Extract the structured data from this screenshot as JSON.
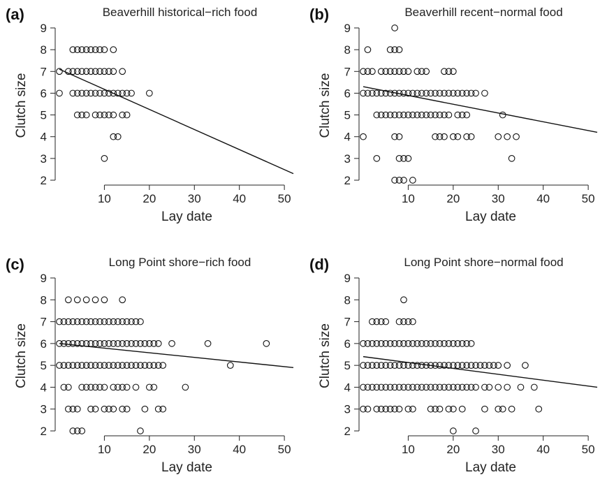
{
  "chart_data": [
    {
      "type": "scatter",
      "panel_label": "(a)",
      "title": "Beaverhill historical−rich food",
      "xlabel": "Lay date",
      "ylabel": "Clutch size",
      "xlim": [
        0,
        52
      ],
      "ylim": [
        2,
        9
      ],
      "xticks": [
        10,
        20,
        30,
        40,
        50
      ],
      "yticks": [
        2,
        3,
        4,
        5,
        6,
        7,
        8,
        9
      ],
      "regression_line": [
        [
          0,
          7.1
        ],
        [
          52,
          2.3
        ]
      ],
      "points": [
        [
          0,
          7
        ],
        [
          0,
          6
        ],
        [
          2,
          7
        ],
        [
          3,
          8
        ],
        [
          3,
          7
        ],
        [
          3,
          6
        ],
        [
          4,
          8
        ],
        [
          4,
          7
        ],
        [
          4,
          6
        ],
        [
          4,
          5
        ],
        [
          5,
          8
        ],
        [
          5,
          7
        ],
        [
          5,
          6
        ],
        [
          5,
          5
        ],
        [
          6,
          8
        ],
        [
          6,
          7
        ],
        [
          6,
          6
        ],
        [
          6,
          5
        ],
        [
          7,
          8
        ],
        [
          7,
          7
        ],
        [
          7,
          6
        ],
        [
          8,
          8
        ],
        [
          8,
          7
        ],
        [
          8,
          6
        ],
        [
          8,
          5
        ],
        [
          9,
          8
        ],
        [
          9,
          7
        ],
        [
          9,
          6
        ],
        [
          9,
          5
        ],
        [
          10,
          8
        ],
        [
          10,
          7
        ],
        [
          10,
          6
        ],
        [
          10,
          5
        ],
        [
          10,
          3
        ],
        [
          11,
          7
        ],
        [
          11,
          6
        ],
        [
          11,
          5
        ],
        [
          12,
          8
        ],
        [
          12,
          7
        ],
        [
          12,
          6
        ],
        [
          12,
          5
        ],
        [
          12,
          4
        ],
        [
          13,
          6
        ],
        [
          13,
          4
        ],
        [
          14,
          7
        ],
        [
          14,
          6
        ],
        [
          14,
          5
        ],
        [
          15,
          6
        ],
        [
          15,
          5
        ],
        [
          16,
          6
        ],
        [
          20,
          6
        ]
      ]
    },
    {
      "type": "scatter",
      "panel_label": "(b)",
      "title": "Beaverhill recent−normal food",
      "xlabel": "Lay date",
      "ylabel": "Clutch size",
      "xlim": [
        0,
        52
      ],
      "ylim": [
        2,
        9
      ],
      "xticks": [
        10,
        20,
        30,
        40,
        50
      ],
      "yticks": [
        2,
        3,
        4,
        5,
        6,
        7,
        8,
        9
      ],
      "regression_line": [
        [
          0,
          6.3
        ],
        [
          52,
          4.2
        ]
      ],
      "points": [
        [
          0,
          7
        ],
        [
          0,
          6
        ],
        [
          0,
          4
        ],
        [
          1,
          8
        ],
        [
          1,
          7
        ],
        [
          1,
          6
        ],
        [
          2,
          7
        ],
        [
          2,
          6
        ],
        [
          3,
          6
        ],
        [
          3,
          5
        ],
        [
          3,
          3
        ],
        [
          4,
          7
        ],
        [
          4,
          6
        ],
        [
          4,
          5
        ],
        [
          5,
          7
        ],
        [
          5,
          6
        ],
        [
          5,
          5
        ],
        [
          6,
          8
        ],
        [
          6,
          7
        ],
        [
          6,
          6
        ],
        [
          6,
          5
        ],
        [
          7,
          9
        ],
        [
          7,
          8
        ],
        [
          7,
          7
        ],
        [
          7,
          6
        ],
        [
          7,
          5
        ],
        [
          7,
          4
        ],
        [
          7,
          2
        ],
        [
          8,
          8
        ],
        [
          8,
          7
        ],
        [
          8,
          6
        ],
        [
          8,
          5
        ],
        [
          8,
          4
        ],
        [
          8,
          3
        ],
        [
          8,
          2
        ],
        [
          9,
          7
        ],
        [
          9,
          6
        ],
        [
          9,
          5
        ],
        [
          9,
          3
        ],
        [
          9,
          2
        ],
        [
          10,
          7
        ],
        [
          10,
          6
        ],
        [
          10,
          5
        ],
        [
          10,
          3
        ],
        [
          11,
          6
        ],
        [
          11,
          5
        ],
        [
          11,
          2
        ],
        [
          12,
          7
        ],
        [
          12,
          6
        ],
        [
          12,
          5
        ],
        [
          13,
          7
        ],
        [
          13,
          6
        ],
        [
          13,
          5
        ],
        [
          14,
          7
        ],
        [
          14,
          6
        ],
        [
          14,
          5
        ],
        [
          15,
          6
        ],
        [
          15,
          5
        ],
        [
          16,
          6
        ],
        [
          16,
          5
        ],
        [
          16,
          4
        ],
        [
          17,
          6
        ],
        [
          17,
          5
        ],
        [
          17,
          4
        ],
        [
          18,
          7
        ],
        [
          18,
          6
        ],
        [
          18,
          5
        ],
        [
          18,
          4
        ],
        [
          19,
          7
        ],
        [
          19,
          6
        ],
        [
          19,
          5
        ],
        [
          20,
          7
        ],
        [
          20,
          6
        ],
        [
          20,
          4
        ],
        [
          21,
          6
        ],
        [
          21,
          5
        ],
        [
          21,
          4
        ],
        [
          22,
          6
        ],
        [
          22,
          5
        ],
        [
          23,
          6
        ],
        [
          23,
          5
        ],
        [
          23,
          4
        ],
        [
          24,
          6
        ],
        [
          24,
          4
        ],
        [
          25,
          6
        ],
        [
          27,
          6
        ],
        [
          30,
          4
        ],
        [
          31,
          5
        ],
        [
          32,
          4
        ],
        [
          33,
          3
        ],
        [
          34,
          4
        ]
      ]
    },
    {
      "type": "scatter",
      "panel_label": "(c)",
      "title": "Long Point shore−rich food",
      "xlabel": "Lay date",
      "ylabel": "Clutch size",
      "xlim": [
        0,
        52
      ],
      "ylim": [
        2,
        9
      ],
      "xticks": [
        10,
        20,
        30,
        40,
        50
      ],
      "yticks": [
        2,
        3,
        4,
        5,
        6,
        7,
        8,
        9
      ],
      "regression_line": [
        [
          0,
          6.0
        ],
        [
          52,
          4.9
        ]
      ],
      "points": [
        [
          0,
          7
        ],
        [
          0,
          6
        ],
        [
          0,
          5
        ],
        [
          1,
          7
        ],
        [
          1,
          6
        ],
        [
          1,
          5
        ],
        [
          1,
          4
        ],
        [
          2,
          8
        ],
        [
          2,
          7
        ],
        [
          2,
          6
        ],
        [
          2,
          5
        ],
        [
          2,
          4
        ],
        [
          2,
          3
        ],
        [
          3,
          7
        ],
        [
          3,
          6
        ],
        [
          3,
          5
        ],
        [
          3,
          3
        ],
        [
          3,
          2
        ],
        [
          4,
          8
        ],
        [
          4,
          7
        ],
        [
          4,
          6
        ],
        [
          4,
          5
        ],
        [
          4,
          3
        ],
        [
          4,
          2
        ],
        [
          5,
          7
        ],
        [
          5,
          6
        ],
        [
          5,
          5
        ],
        [
          5,
          4
        ],
        [
          5,
          2
        ],
        [
          6,
          8
        ],
        [
          6,
          7
        ],
        [
          6,
          6
        ],
        [
          6,
          5
        ],
        [
          6,
          4
        ],
        [
          7,
          7
        ],
        [
          7,
          6
        ],
        [
          7,
          5
        ],
        [
          7,
          4
        ],
        [
          7,
          3
        ],
        [
          8,
          8
        ],
        [
          8,
          7
        ],
        [
          8,
          6
        ],
        [
          8,
          5
        ],
        [
          8,
          4
        ],
        [
          8,
          3
        ],
        [
          9,
          7
        ],
        [
          9,
          6
        ],
        [
          9,
          5
        ],
        [
          9,
          4
        ],
        [
          10,
          8
        ],
        [
          10,
          7
        ],
        [
          10,
          6
        ],
        [
          10,
          5
        ],
        [
          10,
          4
        ],
        [
          10,
          3
        ],
        [
          11,
          7
        ],
        [
          11,
          6
        ],
        [
          11,
          5
        ],
        [
          11,
          3
        ],
        [
          12,
          7
        ],
        [
          12,
          6
        ],
        [
          12,
          5
        ],
        [
          12,
          4
        ],
        [
          12,
          3
        ],
        [
          13,
          7
        ],
        [
          13,
          6
        ],
        [
          13,
          5
        ],
        [
          13,
          4
        ],
        [
          14,
          8
        ],
        [
          14,
          7
        ],
        [
          14,
          6
        ],
        [
          14,
          5
        ],
        [
          14,
          4
        ],
        [
          14,
          3
        ],
        [
          15,
          7
        ],
        [
          15,
          6
        ],
        [
          15,
          5
        ],
        [
          15,
          4
        ],
        [
          15,
          3
        ],
        [
          16,
          7
        ],
        [
          16,
          6
        ],
        [
          16,
          5
        ],
        [
          17,
          7
        ],
        [
          17,
          6
        ],
        [
          17,
          5
        ],
        [
          17,
          4
        ],
        [
          18,
          7
        ],
        [
          18,
          6
        ],
        [
          18,
          5
        ],
        [
          18,
          2
        ],
        [
          19,
          6
        ],
        [
          19,
          5
        ],
        [
          19,
          3
        ],
        [
          20,
          6
        ],
        [
          20,
          5
        ],
        [
          20,
          4
        ],
        [
          21,
          6
        ],
        [
          21,
          5
        ],
        [
          21,
          4
        ],
        [
          22,
          6
        ],
        [
          22,
          5
        ],
        [
          22,
          3
        ],
        [
          23,
          5
        ],
        [
          23,
          3
        ],
        [
          25,
          6
        ],
        [
          28,
          4
        ],
        [
          33,
          6
        ],
        [
          38,
          5
        ],
        [
          46,
          6
        ]
      ]
    },
    {
      "type": "scatter",
      "panel_label": "(d)",
      "title": "Long Point shore−normal food",
      "xlabel": "Lay date",
      "ylabel": "Clutch size",
      "xlim": [
        0,
        52
      ],
      "ylim": [
        2,
        9
      ],
      "xticks": [
        10,
        20,
        30,
        40,
        50
      ],
      "yticks": [
        2,
        3,
        4,
        5,
        6,
        7,
        8,
        9
      ],
      "regression_line": [
        [
          0,
          5.4
        ],
        [
          52,
          4.0
        ]
      ],
      "points": [
        [
          0,
          6
        ],
        [
          0,
          5
        ],
        [
          0,
          4
        ],
        [
          0,
          3
        ],
        [
          1,
          6
        ],
        [
          1,
          5
        ],
        [
          1,
          4
        ],
        [
          1,
          3
        ],
        [
          2,
          7
        ],
        [
          2,
          6
        ],
        [
          2,
          5
        ],
        [
          2,
          4
        ],
        [
          3,
          7
        ],
        [
          3,
          6
        ],
        [
          3,
          5
        ],
        [
          3,
          4
        ],
        [
          3,
          3
        ],
        [
          4,
          7
        ],
        [
          4,
          6
        ],
        [
          4,
          5
        ],
        [
          4,
          4
        ],
        [
          4,
          3
        ],
        [
          5,
          7
        ],
        [
          5,
          6
        ],
        [
          5,
          5
        ],
        [
          5,
          4
        ],
        [
          5,
          3
        ],
        [
          6,
          6
        ],
        [
          6,
          5
        ],
        [
          6,
          4
        ],
        [
          6,
          3
        ],
        [
          7,
          6
        ],
        [
          7,
          5
        ],
        [
          7,
          4
        ],
        [
          7,
          3
        ],
        [
          8,
          7
        ],
        [
          8,
          6
        ],
        [
          8,
          5
        ],
        [
          8,
          4
        ],
        [
          8,
          3
        ],
        [
          9,
          8
        ],
        [
          9,
          7
        ],
        [
          9,
          6
        ],
        [
          9,
          5
        ],
        [
          9,
          4
        ],
        [
          10,
          7
        ],
        [
          10,
          6
        ],
        [
          10,
          5
        ],
        [
          10,
          4
        ],
        [
          10,
          3
        ],
        [
          11,
          7
        ],
        [
          11,
          6
        ],
        [
          11,
          5
        ],
        [
          11,
          4
        ],
        [
          11,
          3
        ],
        [
          12,
          6
        ],
        [
          12,
          5
        ],
        [
          12,
          4
        ],
        [
          13,
          6
        ],
        [
          13,
          5
        ],
        [
          13,
          4
        ],
        [
          14,
          6
        ],
        [
          14,
          5
        ],
        [
          14,
          4
        ],
        [
          15,
          6
        ],
        [
          15,
          5
        ],
        [
          15,
          4
        ],
        [
          15,
          3
        ],
        [
          16,
          6
        ],
        [
          16,
          5
        ],
        [
          16,
          4
        ],
        [
          16,
          3
        ],
        [
          17,
          6
        ],
        [
          17,
          5
        ],
        [
          17,
          4
        ],
        [
          17,
          3
        ],
        [
          18,
          6
        ],
        [
          18,
          5
        ],
        [
          18,
          4
        ],
        [
          19,
          6
        ],
        [
          19,
          5
        ],
        [
          19,
          4
        ],
        [
          19,
          3
        ],
        [
          20,
          6
        ],
        [
          20,
          5
        ],
        [
          20,
          4
        ],
        [
          20,
          3
        ],
        [
          20,
          2
        ],
        [
          21,
          6
        ],
        [
          21,
          5
        ],
        [
          21,
          4
        ],
        [
          22,
          6
        ],
        [
          22,
          5
        ],
        [
          22,
          4
        ],
        [
          22,
          3
        ],
        [
          23,
          6
        ],
        [
          23,
          5
        ],
        [
          23,
          4
        ],
        [
          24,
          6
        ],
        [
          24,
          5
        ],
        [
          24,
          4
        ],
        [
          25,
          5
        ],
        [
          25,
          4
        ],
        [
          25,
          2
        ],
        [
          26,
          5
        ],
        [
          27,
          5
        ],
        [
          27,
          4
        ],
        [
          27,
          3
        ],
        [
          28,
          5
        ],
        [
          28,
          4
        ],
        [
          29,
          5
        ],
        [
          30,
          5
        ],
        [
          30,
          4
        ],
        [
          30,
          3
        ],
        [
          31,
          3
        ],
        [
          32,
          5
        ],
        [
          32,
          4
        ],
        [
          33,
          3
        ],
        [
          35,
          4
        ],
        [
          36,
          5
        ],
        [
          38,
          4
        ],
        [
          39,
          3
        ]
      ]
    }
  ]
}
